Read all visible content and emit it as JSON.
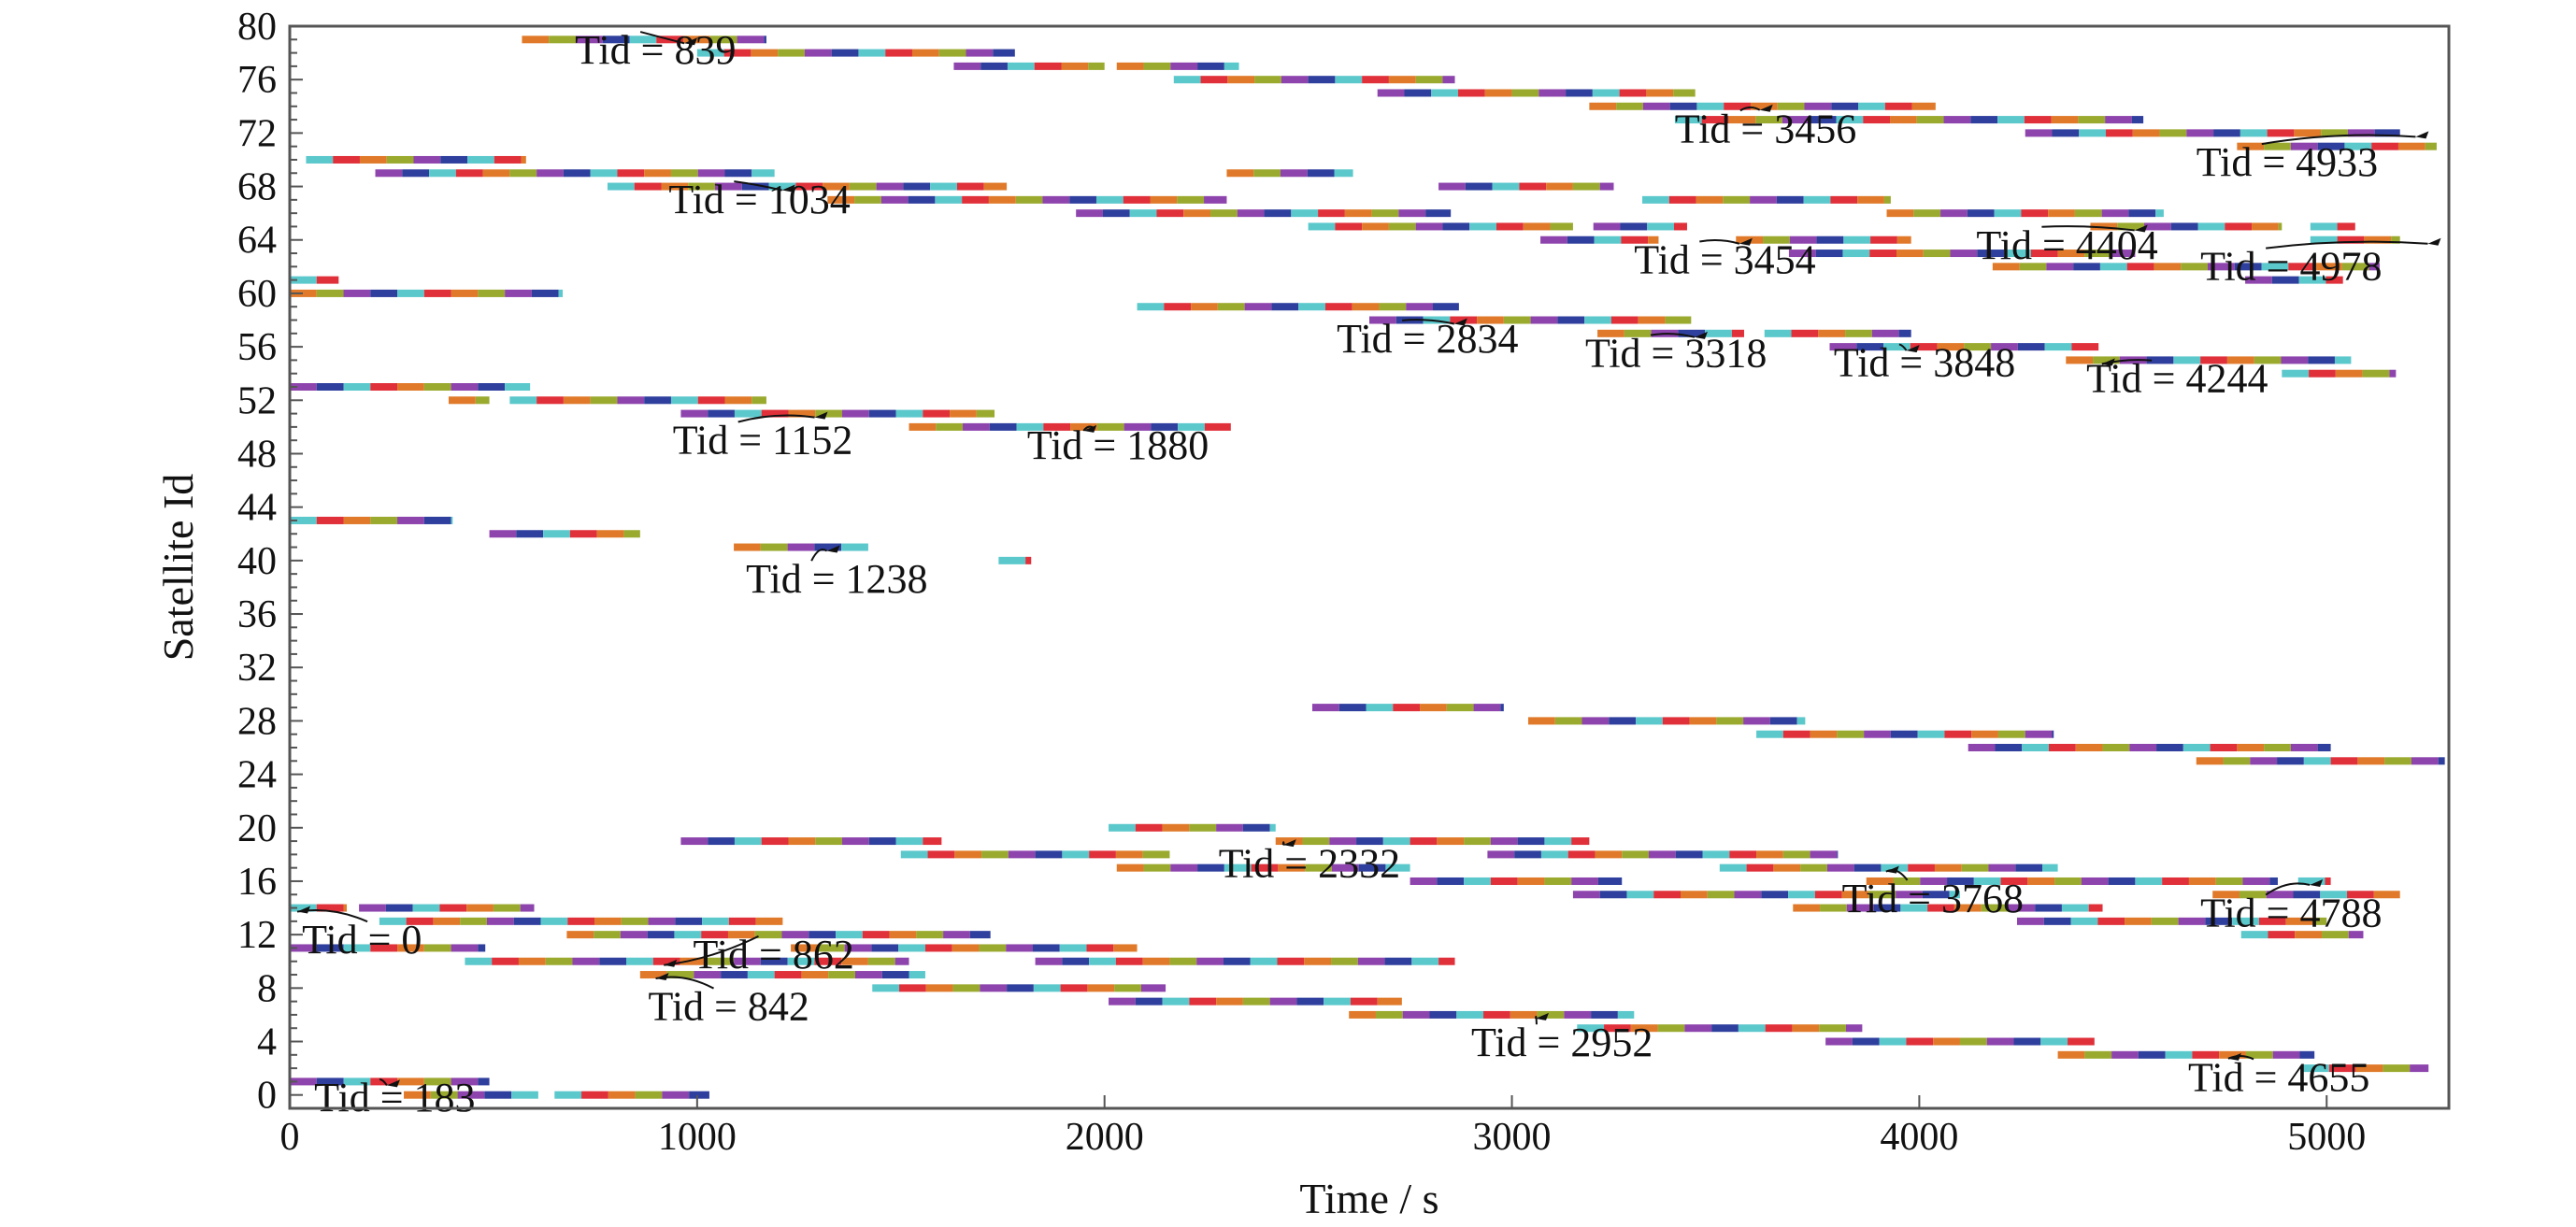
{
  "chart_data": {
    "type": "gantt",
    "xlabel": "Time / s",
    "ylabel": "Satellite Id",
    "xlim": [
      0,
      5300
    ],
    "ylim": [
      -1,
      80
    ],
    "x_ticks": [
      0,
      1000,
      2000,
      3000,
      4000,
      5000
    ],
    "y_ticks": [
      0,
      4,
      8,
      12,
      16,
      20,
      24,
      28,
      32,
      36,
      40,
      44,
      48,
      52,
      56,
      60,
      64,
      68,
      72,
      76,
      80
    ],
    "grid": false,
    "segment_colors": [
      "#8e44ad",
      "#9aaa2e",
      "#e07a2a",
      "#e0303a",
      "#5bc8cc",
      "#2f3f9e"
    ],
    "rows": [
      {
        "sat": 79,
        "start": 570,
        "end": 1170,
        "seed": 1
      },
      {
        "sat": 78,
        "start": 1000,
        "end": 1780,
        "seed": 2
      },
      {
        "sat": 77,
        "start": 1630,
        "end": 2000,
        "seed": 3
      },
      {
        "sat": 77,
        "start": 2030,
        "end": 2330,
        "seed": 4
      },
      {
        "sat": 76,
        "start": 2170,
        "end": 2860,
        "seed": 5
      },
      {
        "sat": 75,
        "start": 2670,
        "end": 3450,
        "seed": 6
      },
      {
        "sat": 74,
        "start": 3190,
        "end": 4040,
        "seed": 7
      },
      {
        "sat": 73,
        "start": 3400,
        "end": 4550,
        "seed": 8
      },
      {
        "sat": 72,
        "start": 4260,
        "end": 5180,
        "seed": 9
      },
      {
        "sat": 71,
        "start": 4780,
        "end": 5270,
        "seed": 10
      },
      {
        "sat": 70,
        "start": 40,
        "end": 580,
        "seed": 11
      },
      {
        "sat": 69,
        "start": 210,
        "end": 1190,
        "seed": 12
      },
      {
        "sat": 69,
        "start": 2300,
        "end": 2610,
        "seed": 13
      },
      {
        "sat": 68,
        "start": 780,
        "end": 1760,
        "seed": 14
      },
      {
        "sat": 68,
        "start": 2820,
        "end": 3250,
        "seed": 15
      },
      {
        "sat": 67,
        "start": 1320,
        "end": 2300,
        "seed": 16
      },
      {
        "sat": 67,
        "start": 3320,
        "end": 3930,
        "seed": 17
      },
      {
        "sat": 66,
        "start": 1930,
        "end": 2850,
        "seed": 18
      },
      {
        "sat": 66,
        "start": 3920,
        "end": 4600,
        "seed": 19
      },
      {
        "sat": 65,
        "start": 2500,
        "end": 3150,
        "seed": 20
      },
      {
        "sat": 65,
        "start": 3200,
        "end": 3430,
        "seed": 21
      },
      {
        "sat": 65,
        "start": 4420,
        "end": 4890,
        "seed": 22
      },
      {
        "sat": 65,
        "start": 4960,
        "end": 5070,
        "seed": 23
      },
      {
        "sat": 64,
        "start": 3070,
        "end": 3360,
        "seed": 24
      },
      {
        "sat": 64,
        "start": 3550,
        "end": 3980,
        "seed": 25
      },
      {
        "sat": 64,
        "start": 4960,
        "end": 5180,
        "seed": 26
      },
      {
        "sat": 63,
        "start": 3680,
        "end": 4530,
        "seed": 27
      },
      {
        "sat": 62,
        "start": 4180,
        "end": 5130,
        "seed": 28
      },
      {
        "sat": 61,
        "start": 0,
        "end": 120,
        "seed": 29
      },
      {
        "sat": 61,
        "start": 4800,
        "end": 5040,
        "seed": 30
      },
      {
        "sat": 60,
        "start": 0,
        "end": 670,
        "seed": 31
      },
      {
        "sat": 59,
        "start": 2080,
        "end": 2870,
        "seed": 32
      },
      {
        "sat": 58,
        "start": 2650,
        "end": 3440,
        "seed": 33
      },
      {
        "sat": 57,
        "start": 3210,
        "end": 3570,
        "seed": 34
      },
      {
        "sat": 57,
        "start": 3620,
        "end": 3980,
        "seed": 35
      },
      {
        "sat": 56,
        "start": 3780,
        "end": 4440,
        "seed": 36
      },
      {
        "sat": 55,
        "start": 4360,
        "end": 5060,
        "seed": 37
      },
      {
        "sat": 54,
        "start": 4890,
        "end": 5170,
        "seed": 38
      },
      {
        "sat": 53,
        "start": 0,
        "end": 590,
        "seed": 39
      },
      {
        "sat": 52,
        "start": 390,
        "end": 490,
        "seed": 40
      },
      {
        "sat": 52,
        "start": 540,
        "end": 1170,
        "seed": 41
      },
      {
        "sat": 51,
        "start": 960,
        "end": 1730,
        "seed": 42
      },
      {
        "sat": 50,
        "start": 1520,
        "end": 2310,
        "seed": 43
      },
      {
        "sat": 43,
        "start": 0,
        "end": 400,
        "seed": 44
      },
      {
        "sat": 42,
        "start": 490,
        "end": 860,
        "seed": 45
      },
      {
        "sat": 41,
        "start": 1090,
        "end": 1420,
        "seed": 46
      },
      {
        "sat": 40,
        "start": 1740,
        "end": 1820,
        "seed": 47
      },
      {
        "sat": 29,
        "start": 2510,
        "end": 2980,
        "seed": 48
      },
      {
        "sat": 28,
        "start": 3040,
        "end": 3720,
        "seed": 49
      },
      {
        "sat": 27,
        "start": 3600,
        "end": 4330,
        "seed": 50
      },
      {
        "sat": 26,
        "start": 4120,
        "end": 5010,
        "seed": 51
      },
      {
        "sat": 25,
        "start": 4680,
        "end": 5290,
        "seed": 52
      },
      {
        "sat": 20,
        "start": 2010,
        "end": 2420,
        "seed": 53
      },
      {
        "sat": 19,
        "start": 960,
        "end": 1600,
        "seed": 54
      },
      {
        "sat": 19,
        "start": 2420,
        "end": 3190,
        "seed": 55
      },
      {
        "sat": 18,
        "start": 1500,
        "end": 2160,
        "seed": 56
      },
      {
        "sat": 18,
        "start": 2940,
        "end": 3800,
        "seed": 57
      },
      {
        "sat": 17,
        "start": 2030,
        "end": 2750,
        "seed": 58
      },
      {
        "sat": 17,
        "start": 3510,
        "end": 4340,
        "seed": 59
      },
      {
        "sat": 16,
        "start": 2750,
        "end": 3270,
        "seed": 60
      },
      {
        "sat": 16,
        "start": 3870,
        "end": 4880,
        "seed": 61
      },
      {
        "sat": 16,
        "start": 4930,
        "end": 5010,
        "seed": 62
      },
      {
        "sat": 15,
        "start": 3150,
        "end": 4100,
        "seed": 63
      },
      {
        "sat": 15,
        "start": 4720,
        "end": 5180,
        "seed": 64
      },
      {
        "sat": 14,
        "start": 0,
        "end": 140,
        "seed": 65
      },
      {
        "sat": 14,
        "start": 170,
        "end": 600,
        "seed": 66
      },
      {
        "sat": 14,
        "start": 3690,
        "end": 4450,
        "seed": 67
      },
      {
        "sat": 13,
        "start": 220,
        "end": 1210,
        "seed": 68
      },
      {
        "sat": 13,
        "start": 4240,
        "end": 5000,
        "seed": 69
      },
      {
        "sat": 12,
        "start": 680,
        "end": 1720,
        "seed": 70
      },
      {
        "sat": 12,
        "start": 4790,
        "end": 5090,
        "seed": 71
      },
      {
        "sat": 11,
        "start": 0,
        "end": 480,
        "seed": 72
      },
      {
        "sat": 11,
        "start": 1230,
        "end": 2080,
        "seed": 73
      },
      {
        "sat": 10,
        "start": 430,
        "end": 1520,
        "seed": 74
      },
      {
        "sat": 10,
        "start": 1830,
        "end": 2860,
        "seed": 75
      },
      {
        "sat": 9,
        "start": 860,
        "end": 1560,
        "seed": 76
      },
      {
        "sat": 8,
        "start": 1430,
        "end": 2150,
        "seed": 77
      },
      {
        "sat": 7,
        "start": 2010,
        "end": 2730,
        "seed": 78
      },
      {
        "sat": 6,
        "start": 2600,
        "end": 3300,
        "seed": 79
      },
      {
        "sat": 5,
        "start": 3160,
        "end": 3860,
        "seed": 80
      },
      {
        "sat": 4,
        "start": 3770,
        "end": 4430,
        "seed": 81
      },
      {
        "sat": 3,
        "start": 4340,
        "end": 4970,
        "seed": 82
      },
      {
        "sat": 2,
        "start": 4940,
        "end": 5250,
        "seed": 83
      },
      {
        "sat": 1,
        "start": 0,
        "end": 490,
        "seed": 84
      },
      {
        "sat": 0,
        "start": 280,
        "end": 610,
        "seed": 85
      },
      {
        "sat": 0,
        "start": 650,
        "end": 1030,
        "seed": 86
      }
    ],
    "annotations": [
      {
        "text": "Tid = 839",
        "x": 700,
        "y": 77.2,
        "arrow_to": [
          950,
          79
        ]
      },
      {
        "text": "Tid = 1034",
        "x": 930,
        "y": 66.0,
        "arrow_to": [
          1190,
          68
        ]
      },
      {
        "text": "Tid = 3456",
        "x": 3400,
        "y": 71.3,
        "arrow_to": [
          3590,
          74
        ]
      },
      {
        "text": "Tid = 4933",
        "x": 4680,
        "y": 68.8,
        "arrow_to": [
          5200,
          72
        ]
      },
      {
        "text": "Tid = 3454",
        "x": 3300,
        "y": 61.5,
        "arrow_to": [
          3540,
          64
        ]
      },
      {
        "text": "Tid = 4404",
        "x": 4140,
        "y": 62.6,
        "arrow_to": [
          4510,
          65
        ]
      },
      {
        "text": "Tid = 4978",
        "x": 4690,
        "y": 61.0,
        "arrow_to": [
          5230,
          64
        ]
      },
      {
        "text": "Tid = 2834",
        "x": 2570,
        "y": 55.6,
        "arrow_to": [
          2840,
          58
        ]
      },
      {
        "text": "Tid = 3318",
        "x": 3180,
        "y": 54.5,
        "arrow_to": [
          3430,
          57
        ]
      },
      {
        "text": "Tid = 3848",
        "x": 3790,
        "y": 53.8,
        "arrow_to": [
          3950,
          56
        ]
      },
      {
        "text": "Tid = 4244",
        "x": 4410,
        "y": 52.6,
        "arrow_to": [
          4430,
          55
        ]
      },
      {
        "text": "Tid = 1152",
        "x": 940,
        "y": 48.0,
        "arrow_to": [
          1270,
          51
        ]
      },
      {
        "text": "Tid = 1880",
        "x": 1810,
        "y": 47.6,
        "arrow_to": [
          1930,
          50
        ]
      },
      {
        "text": "Tid = 1238",
        "x": 1120,
        "y": 37.6,
        "arrow_to": [
          1300,
          41
        ]
      },
      {
        "text": "Tid = 2332",
        "x": 2280,
        "y": 16.3,
        "arrow_to": [
          2420,
          19
        ]
      },
      {
        "text": "Tid = 3768",
        "x": 3810,
        "y": 13.7,
        "arrow_to": [
          3900,
          17
        ]
      },
      {
        "text": "Tid = 4788",
        "x": 4690,
        "y": 12.6,
        "arrow_to": [
          4940,
          16
        ]
      },
      {
        "text": "Tid = 0",
        "x": 30,
        "y": 10.6,
        "arrow_to": [
          0,
          14
        ]
      },
      {
        "text": "Tid = 862",
        "x": 990,
        "y": 9.5,
        "arrow_to": [
          900,
          10
        ]
      },
      {
        "text": "Tid = 842",
        "x": 880,
        "y": 5.6,
        "arrow_to": [
          880,
          9
        ]
      },
      {
        "text": "Tid = 2952",
        "x": 2900,
        "y": 2.9,
        "arrow_to": [
          3040,
          6
        ]
      },
      {
        "text": "Tid = 4655",
        "x": 4660,
        "y": 0.3,
        "arrow_to": [
          4740,
          3
        ]
      },
      {
        "text": "Tid = 183",
        "x": 60,
        "y": -1.2,
        "arrow_to": [
          220,
          1
        ]
      }
    ]
  }
}
